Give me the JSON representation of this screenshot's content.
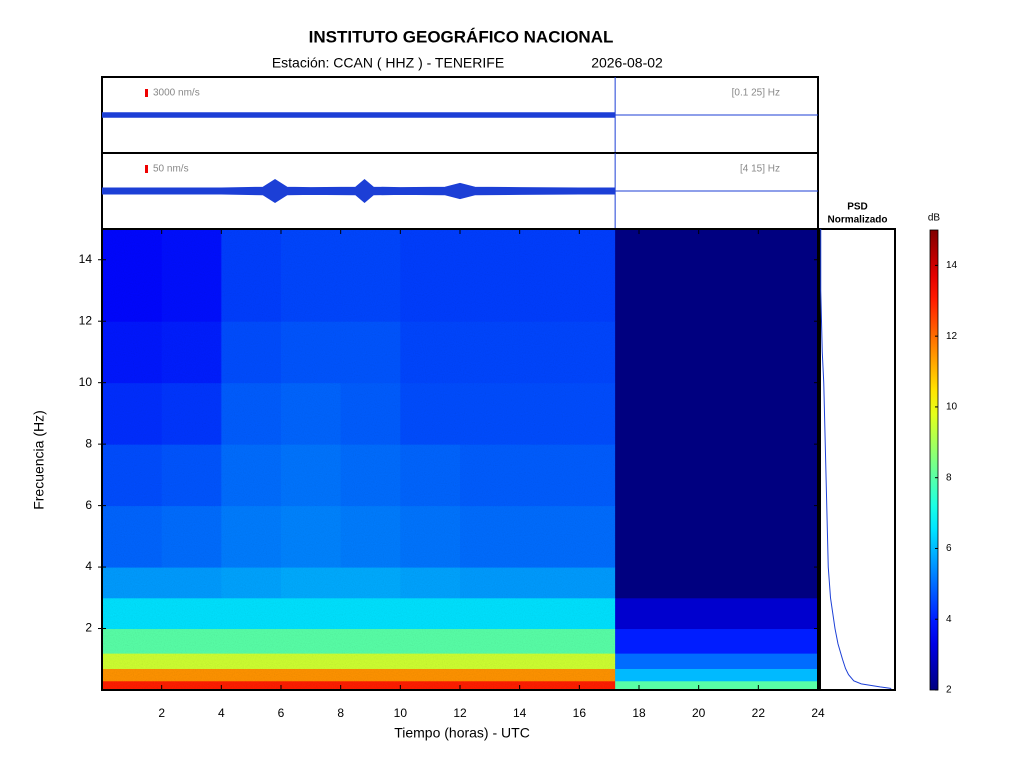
{
  "header": {
    "title": "INSTITUTO GEOGRÁFICO NACIONAL",
    "station": "Estación:  CCAN ( HHZ ) - TENERIFE",
    "date": "2026-08-02"
  },
  "chart_data": [
    {
      "type": "trace",
      "scale_label": "3000 nm/s",
      "band_label": "[0.1 25] Hz",
      "color": "#1c3fd6",
      "xlim": [
        0,
        24
      ],
      "ylim": [
        -1,
        1
      ],
      "x": [
        0,
        17.2
      ],
      "values": [
        0.06,
        0.06
      ]
    },
    {
      "type": "trace",
      "scale_label": "50 nm/s",
      "band_label": "[4 15] Hz",
      "color": "#1c3fd6",
      "xlim": [
        0,
        24
      ],
      "ylim": [
        -1,
        1
      ],
      "x": [
        0,
        2,
        4,
        5.4,
        5.8,
        6.2,
        7,
        8.5,
        8.8,
        9.1,
        10,
        11.5,
        12,
        12.5,
        14,
        16,
        17.2
      ],
      "values": [
        0.08,
        0.08,
        0.08,
        0.1,
        0.3,
        0.1,
        0.09,
        0.1,
        0.3,
        0.1,
        0.09,
        0.1,
        0.2,
        0.1,
        0.09,
        0.08,
        0.08
      ]
    },
    {
      "type": "heatmap",
      "xlabel": "Tiempo (horas) - UTC",
      "ylabel": "Frecuencia  (Hz)",
      "xlim": [
        0,
        24
      ],
      "ylim": [
        0,
        15
      ],
      "xticks": [
        2,
        4,
        6,
        8,
        10,
        12,
        14,
        16,
        18,
        20,
        22,
        24
      ],
      "yticks": [
        2,
        4,
        6,
        8,
        10,
        12,
        14
      ],
      "x_bins": [
        0,
        2,
        4,
        6,
        8,
        10,
        12,
        14,
        16,
        17.2,
        24
      ],
      "y_bins": [
        0,
        0.3,
        0.7,
        1.2,
        2,
        3,
        4,
        6,
        8,
        10,
        12,
        15
      ],
      "values": [
        [
          13,
          13,
          13,
          13,
          13,
          13,
          13,
          13,
          13,
          8
        ],
        [
          11.5,
          11.5,
          11.5,
          11.5,
          11.5,
          11.5,
          11.5,
          11.5,
          11.5,
          6
        ],
        [
          9.5,
          9.5,
          9.5,
          9.5,
          9.5,
          9.5,
          9.5,
          9.5,
          9.5,
          5
        ],
        [
          8,
          8,
          8,
          8,
          8,
          8,
          8,
          8,
          8,
          4
        ],
        [
          6.5,
          6.5,
          6.5,
          6.5,
          6.5,
          6.5,
          6.5,
          6.5,
          6.5,
          3
        ],
        [
          5.6,
          5.6,
          5.7,
          5.8,
          5.8,
          5.7,
          5.6,
          5.6,
          5.6,
          2
        ],
        [
          4.9,
          5.0,
          5.2,
          5.3,
          5.2,
          5.1,
          5.0,
          5.0,
          5.0,
          2
        ],
        [
          4.6,
          4.7,
          5.0,
          5.1,
          5.0,
          4.9,
          4.8,
          4.8,
          4.8,
          2
        ],
        [
          4.2,
          4.3,
          4.8,
          4.9,
          4.8,
          4.6,
          4.6,
          4.6,
          4.6,
          2
        ],
        [
          3.9,
          4.0,
          4.6,
          4.7,
          4.7,
          4.5,
          4.5,
          4.5,
          4.5,
          2
        ],
        [
          3.7,
          3.8,
          4.4,
          4.5,
          4.5,
          4.4,
          4.4,
          4.4,
          4.4,
          2
        ]
      ],
      "colormap": "jet",
      "colorbar": {
        "label": "dB",
        "lim": [
          2,
          15
        ],
        "ticks": [
          2,
          4,
          6,
          8,
          10,
          12,
          14
        ]
      }
    },
    {
      "type": "line",
      "title_lines": [
        "PSD",
        "Normalizado"
      ],
      "color": "#1c3fd6",
      "xlim": [
        0,
        1
      ],
      "ylim": [
        0,
        15
      ],
      "frequencies": [
        0.05,
        0.1,
        0.2,
        0.3,
        0.5,
        0.7,
        1,
        1.5,
        2,
        3,
        4,
        5,
        6,
        7,
        8,
        9,
        10,
        11,
        12,
        13,
        14,
        15
      ],
      "values": [
        0.95,
        0.8,
        0.55,
        0.45,
        0.38,
        0.34,
        0.3,
        0.24,
        0.2,
        0.14,
        0.11,
        0.1,
        0.09,
        0.08,
        0.07,
        0.06,
        0.05,
        0.03,
        0.02,
        0.01,
        0.01,
        0.01
      ]
    }
  ]
}
